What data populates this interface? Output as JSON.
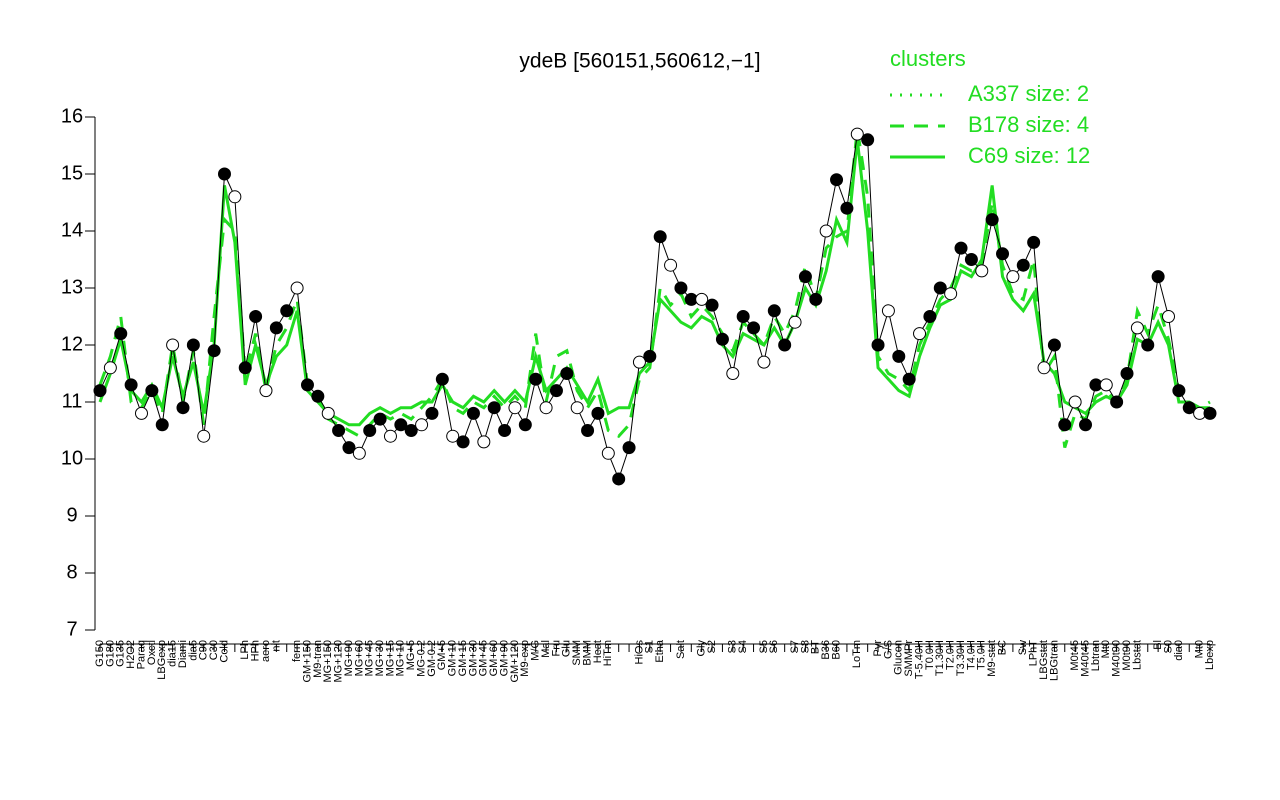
{
  "chart_data": {
    "type": "line",
    "title": "ydeB [560151,560612,−1]",
    "legend_title": "clusters",
    "legend_position": "top-right",
    "ylim": [
      7,
      16
    ],
    "yticks": [
      7,
      8,
      9,
      10,
      11,
      12,
      13,
      14,
      15,
      16
    ],
    "categories": [
      "G150",
      "G180",
      "G135",
      "H2O2",
      "Paraq",
      "Oxctl",
      "LBGexp",
      "dia15",
      "Diami",
      "dia5",
      "C90",
      "C30",
      "Cold",
      null,
      "LPh",
      "HPh",
      "aero",
      "nit",
      null,
      "ferm",
      "GM+150",
      "M9-tran",
      "MG+150",
      "MG+120",
      "MG+90",
      "MG+60",
      "MG+45",
      "MG+30",
      "MG+15",
      "MG+10",
      "MG+5",
      "MG-0.2",
      "GM-0.2",
      "GM+5",
      "GM+10",
      "GM+15",
      "GM+30",
      "GM+45",
      "GM+60",
      "GM+90",
      "GM+120",
      "M9-exp",
      "M/G",
      "Mal",
      "Fru",
      "Glu",
      "SMM",
      "BMM",
      "Heat",
      "HiTm",
      null,
      null,
      "HiOs",
      "S1",
      "Etha",
      null,
      "Salt",
      null,
      "Gly",
      "S2",
      null,
      "S3",
      "S4",
      null,
      "S5",
      "S6",
      null,
      "S7",
      "S8",
      "BT",
      "B36",
      "B60",
      null,
      "LoTm",
      null,
      "Pyr",
      "G/S",
      "Glucon",
      "SMMPr",
      "T-5.40H",
      "T0.0H",
      "T1.30H",
      "T2.0H",
      "T3.30H",
      "T4.0H",
      "T5.0H",
      "M9-stat",
      "BC",
      null,
      "Sw",
      "LPhT",
      "LBGstat",
      "LBGtran",
      null,
      "M0t45",
      "M40t45",
      "Lbtran",
      "Mt0",
      "M40t90",
      "M0t90",
      "Lbstat",
      null,
      "Bl",
      "S0",
      "dia0",
      null,
      "Mt0",
      "Lbexp"
    ],
    "color": "#000000",
    "values": [
      11.2,
      11.6,
      12.2,
      11.3,
      10.8,
      11.2,
      10.6,
      12.0,
      10.9,
      12.0,
      10.4,
      11.9,
      15.0,
      14.6,
      11.6,
      12.5,
      11.2,
      12.3,
      12.6,
      13.0,
      11.3,
      11.1,
      10.8,
      10.5,
      10.2,
      10.1,
      10.5,
      10.7,
      10.4,
      10.6,
      10.5,
      10.6,
      10.8,
      11.4,
      10.4,
      10.3,
      10.8,
      10.3,
      10.9,
      10.5,
      10.9,
      10.6,
      11.4,
      10.9,
      11.2,
      11.5,
      10.9,
      10.5,
      10.8,
      10.1,
      9.65,
      10.2,
      11.7,
      11.8,
      13.9,
      13.4,
      13.0,
      12.8,
      12.8,
      12.7,
      12.1,
      11.5,
      12.5,
      12.3,
      11.7,
      12.6,
      12.0,
      12.4,
      13.2,
      12.8,
      14.0,
      14.9,
      14.4,
      15.7,
      15.6,
      12.0,
      12.6,
      11.8,
      11.4,
      12.2,
      12.5,
      13.0,
      12.9,
      13.7,
      13.5,
      13.3,
      14.2,
      13.6,
      13.2,
      13.4,
      13.8,
      11.6,
      12.0,
      10.6,
      11.0,
      10.6,
      11.3,
      11.3,
      11.0,
      11.5,
      12.3,
      12.0,
      13.2,
      12.5,
      11.2,
      10.9,
      10.8,
      10.8
    ],
    "series": [
      {
        "name": "A337 size: 2",
        "color": "#22dd22",
        "dash": "dotted",
        "values": [
          null,
          null,
          null,
          null,
          null,
          null,
          null,
          null,
          null,
          null,
          null,
          null,
          null,
          null,
          null,
          null,
          null,
          null,
          null,
          null,
          null,
          null,
          null,
          null,
          null,
          null,
          null,
          null,
          null,
          null,
          null,
          null,
          null,
          null,
          null,
          null,
          null,
          null,
          null,
          null,
          null,
          null,
          null,
          null,
          null,
          null,
          null,
          null,
          null,
          null,
          null,
          null,
          null,
          null,
          null,
          null,
          null,
          null,
          null,
          null,
          null,
          null,
          null,
          null,
          null,
          null,
          null,
          null,
          null,
          null,
          null,
          null,
          null,
          null,
          null,
          null,
          null,
          null,
          null,
          null,
          null,
          null,
          null,
          null,
          null,
          null,
          null,
          null,
          null,
          null,
          null,
          null,
          null,
          null,
          null,
          null,
          null,
          null,
          null,
          null,
          null,
          null,
          null,
          null,
          null,
          null,
          null,
          null
        ]
      },
      {
        "name": "B178 size: 4",
        "color": "#22dd22",
        "dash": "dashed",
        "values": [
          11.3,
          11.8,
          12.5,
          11.0,
          10.9,
          11.2,
          10.8,
          12.0,
          11.0,
          11.9,
          10.6,
          12.5,
          14.2,
          14.0,
          11.5,
          12.2,
          11.2,
          12.0,
          12.3,
          12.8,
          11.3,
          11.1,
          10.7,
          10.6,
          10.5,
          10.4,
          10.6,
          10.8,
          10.7,
          10.8,
          10.7,
          10.9,
          11.1,
          11.4,
          10.9,
          10.8,
          11.0,
          10.9,
          11.1,
          10.9,
          11.1,
          10.9,
          12.2,
          11.0,
          11.8,
          11.9,
          11.2,
          10.9,
          11.2,
          10.5,
          10.4,
          10.6,
          11.4,
          11.6,
          13.0,
          12.7,
          12.9,
          12.5,
          12.7,
          12.5,
          12.2,
          11.9,
          12.4,
          12.2,
          12.0,
          12.5,
          12.2,
          12.6,
          13.4,
          12.8,
          13.7,
          13.9,
          14.0,
          15.8,
          14.6,
          11.8,
          11.5,
          11.4,
          11.2,
          12.0,
          12.4,
          12.8,
          13.0,
          13.4,
          13.3,
          13.4,
          14.5,
          13.4,
          12.9,
          12.8,
          13.5,
          11.5,
          11.8,
          10.2,
          10.8,
          10.7,
          11.1,
          11.2,
          11.0,
          11.4,
          12.6,
          12.2,
          12.7,
          12.1,
          11.2,
          10.9,
          10.9,
          11.0
        ]
      },
      {
        "name": "C69 size: 12",
        "color": "#22dd22",
        "dash": "solid",
        "values": [
          11.0,
          11.5,
          12.1,
          11.2,
          11.0,
          11.3,
          10.9,
          11.8,
          11.1,
          11.7,
          10.8,
          12.0,
          14.8,
          13.8,
          11.3,
          12.0,
          11.3,
          11.8,
          12.0,
          12.6,
          11.2,
          11.0,
          10.8,
          10.7,
          10.6,
          10.6,
          10.8,
          10.9,
          10.8,
          10.9,
          10.9,
          11.0,
          11.0,
          11.3,
          11.0,
          10.9,
          11.1,
          11.0,
          11.2,
          11.0,
          11.2,
          11.0,
          11.8,
          11.2,
          11.4,
          11.6,
          11.3,
          11.0,
          11.4,
          10.8,
          10.9,
          10.9,
          11.5,
          11.7,
          12.8,
          12.6,
          12.4,
          12.3,
          12.5,
          12.4,
          12.0,
          11.8,
          12.2,
          12.1,
          12.0,
          12.3,
          12.0,
          12.4,
          13.0,
          12.7,
          13.3,
          14.2,
          13.8,
          15.6,
          14.0,
          11.6,
          11.4,
          11.2,
          11.1,
          11.8,
          12.3,
          12.7,
          12.8,
          13.3,
          13.2,
          13.5,
          14.8,
          13.2,
          12.8,
          12.6,
          12.9,
          11.7,
          11.5,
          11.0,
          10.9,
          10.8,
          11.0,
          11.1,
          11.0,
          11.3,
          12.1,
          12.0,
          12.4,
          12.0,
          11.0,
          11.0,
          10.9,
          10.9
        ]
      }
    ]
  }
}
